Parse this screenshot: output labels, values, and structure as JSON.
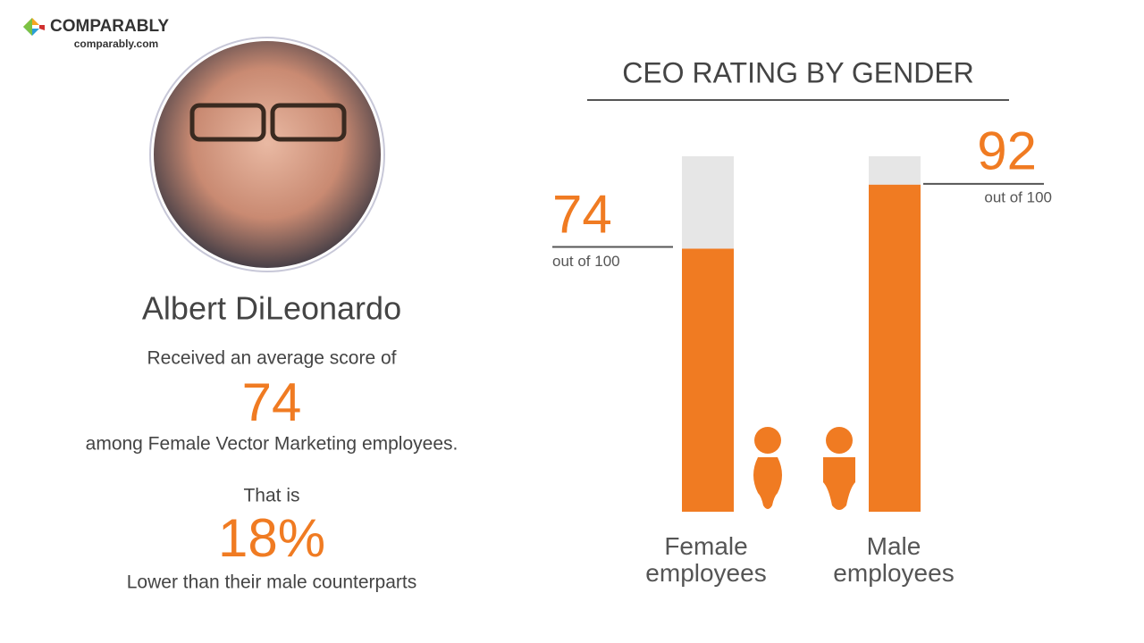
{
  "brand": {
    "name": "COMPARABLY",
    "url": "comparably.com"
  },
  "profile": {
    "name": "Albert DiLeonardo",
    "intro": "Received an average score of",
    "context": "among Female Vector Marketing employees.",
    "that_is": "That is",
    "difference": "18%",
    "difference_context": "Lower than their male counterparts"
  },
  "chart_data": {
    "type": "bar",
    "title": "CEO RATING BY GENDER",
    "categories": [
      "Female employees",
      "Male employees"
    ],
    "values": [
      74,
      92
    ],
    "annotations": [
      "out of 100",
      "out of 100"
    ],
    "color": "#f07b22",
    "track_color": "#e6e6e6",
    "ylim": [
      0,
      100
    ]
  }
}
